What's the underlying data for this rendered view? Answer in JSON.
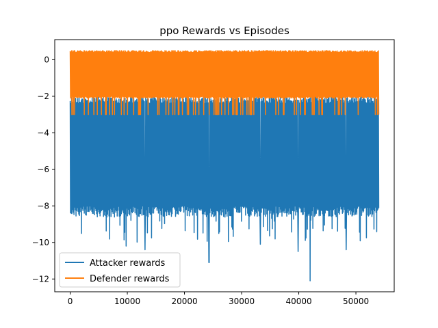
{
  "chart_data": {
    "type": "line",
    "title": "ppo Rewards vs Episodes",
    "xlabel": "",
    "ylabel": "",
    "xlim": [
      -2700,
      56700
    ],
    "ylim": [
      -12.7,
      1.1
    ],
    "x_ticks": [
      0,
      10000,
      20000,
      30000,
      40000,
      50000
    ],
    "y_ticks": [
      0,
      -2,
      -4,
      -6,
      -8,
      -10,
      -12
    ],
    "episodes": 54000,
    "legend_position": "lower-left",
    "grid": false,
    "series": [
      {
        "name": "Attacker rewards",
        "color": "#1f77b4",
        "typical_range": [
          -8.0,
          -2.0
        ],
        "min": -12.1,
        "max": -2.0,
        "notable_dips": [
          {
            "x": 24300,
            "y": -11.1
          },
          {
            "x": 39900,
            "y": -10.5
          },
          {
            "x": 42000,
            "y": -12.1
          },
          {
            "x": 48300,
            "y": -10.4
          },
          {
            "x": 13100,
            "y": -10.4
          },
          {
            "x": 9800,
            "y": -10.2
          },
          {
            "x": 33300,
            "y": -10.1
          }
        ]
      },
      {
        "name": "Defender rewards",
        "color": "#ff7f0e",
        "typical_range": [
          -2.0,
          0.4
        ],
        "min": -3.0,
        "max": 0.5
      }
    ]
  }
}
